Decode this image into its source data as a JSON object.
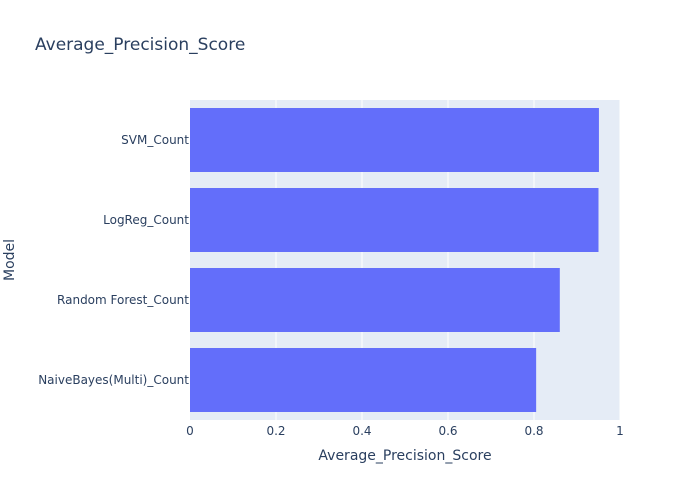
{
  "chart_data": {
    "type": "bar",
    "orientation": "horizontal",
    "title": "Average_Precision_Score",
    "xlabel": "Average_Precision_Score",
    "ylabel": "Model",
    "categories": [
      "NaiveBayes(Multi)_Count",
      "Random Forest_Count",
      "LogReg_Count",
      "SVM_Count"
    ],
    "values": [
      0.805,
      0.86,
      0.95,
      0.951
    ],
    "xlim": [
      0,
      1
    ],
    "xticks": [
      0,
      0.2,
      0.4,
      0.6,
      0.8,
      1
    ],
    "xtick_labels": [
      "0",
      "0.2",
      "0.4",
      "0.6",
      "0.8",
      "1"
    ],
    "grid": true,
    "legend": "none",
    "colors": {
      "bar": "#636efa",
      "plot_background": "#e5ecf6",
      "grid": "#ffffff",
      "text": "#2a3f5f"
    }
  }
}
